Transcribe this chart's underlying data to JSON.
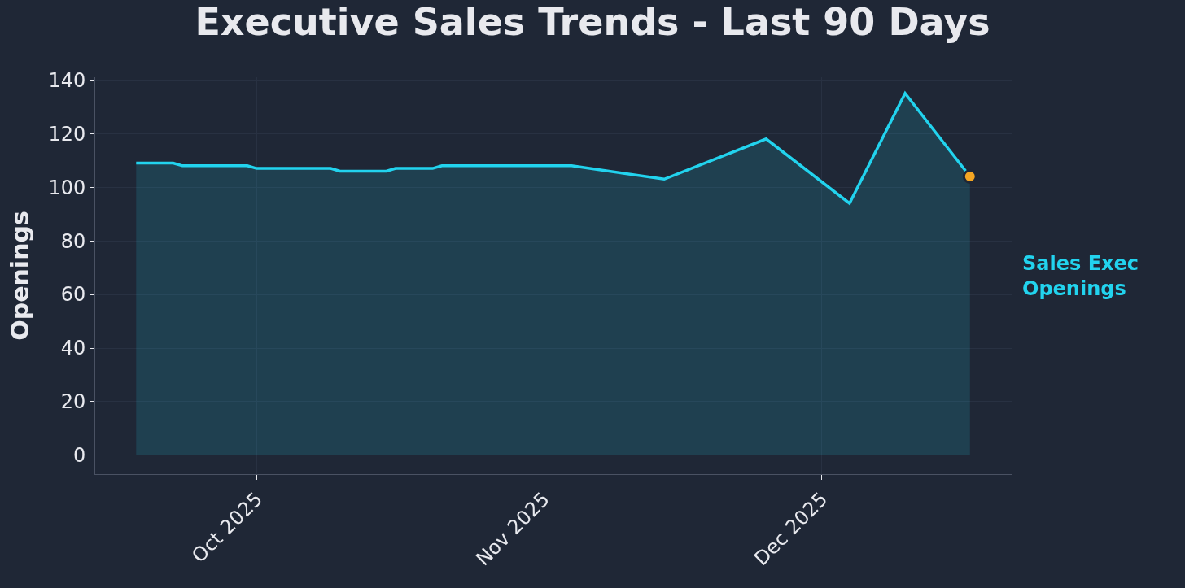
{
  "chart_data": {
    "type": "area",
    "title": "Executive Sales Trends - Last 90 Days",
    "ylabel": "Openings",
    "x": [
      "2025-09-18",
      "2025-09-22",
      "2025-09-23",
      "2025-09-30",
      "2025-10-01",
      "2025-10-09",
      "2025-10-10",
      "2025-10-15",
      "2025-10-16",
      "2025-10-20",
      "2025-10-21",
      "2025-11-04",
      "2025-11-14",
      "2025-11-25",
      "2025-12-04",
      "2025-12-10",
      "2025-12-17"
    ],
    "series": [
      {
        "name": "Sales Exec\nOpenings",
        "color": "#22d3ee",
        "values": [
          109,
          109,
          108,
          108,
          107,
          107,
          106,
          106,
          107,
          107,
          108,
          108,
          103,
          118,
          94,
          135,
          104
        ]
      },
      {
        "type": "scatter",
        "color": "#f5a623",
        "x": [
          "2025-12-17"
        ],
        "values": [
          104
        ],
        "marker": "circle"
      }
    ],
    "xlim": [
      "2025-09-13T14:00",
      "2025-12-21T12:00"
    ],
    "xticks": [
      {
        "value": "2025-10-01",
        "label": "Oct 2025"
      },
      {
        "value": "2025-11-01",
        "label": "Nov 2025"
      },
      {
        "value": "2025-12-01",
        "label": "Dec 2025"
      }
    ],
    "ylim": [
      -7,
      141
    ],
    "yticks": [
      0,
      20,
      40,
      60,
      80,
      100,
      120,
      140
    ],
    "grid": true,
    "legend": false,
    "marker": "none",
    "line_style": "solid"
  }
}
